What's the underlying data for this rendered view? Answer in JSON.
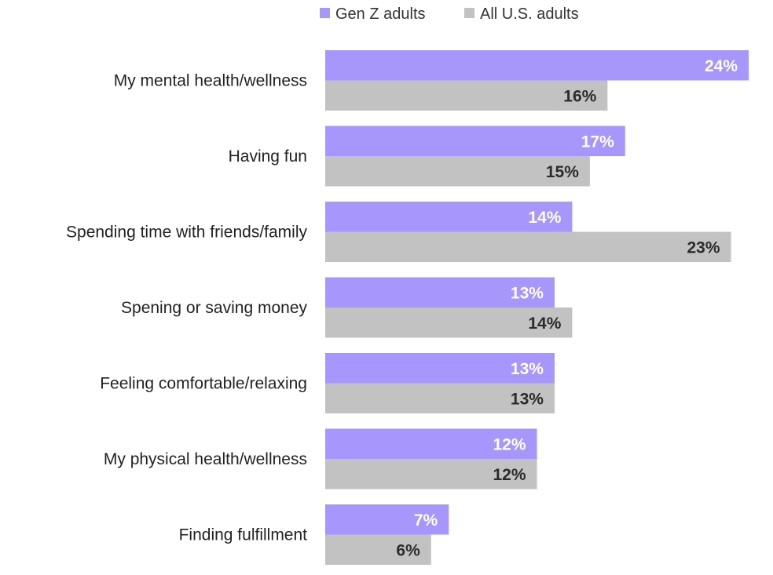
{
  "chart_data": {
    "type": "bar",
    "orientation": "horizontal",
    "title": "",
    "xlabel": "",
    "ylabel": "",
    "xlim": [
      0,
      24
    ],
    "grid": false,
    "legend_position": "top",
    "value_suffix": "%",
    "categories": [
      "My mental health/wellness",
      "Having fun",
      "Spending time with friends/family",
      "Spening or saving money",
      "Feeling comfortable/relaxing",
      "My physical health/wellness",
      "Finding fulfillment"
    ],
    "series": [
      {
        "name": "Gen Z adults",
        "color": "#a796fb",
        "label_color": "#ffffff",
        "values": [
          24,
          17,
          14,
          13,
          13,
          12,
          7
        ]
      },
      {
        "name": "All U.S. adults",
        "color": "#c2c2c2",
        "label_color": "#2b2b2b",
        "values": [
          16,
          15,
          23,
          14,
          13,
          12,
          6
        ]
      }
    ]
  }
}
